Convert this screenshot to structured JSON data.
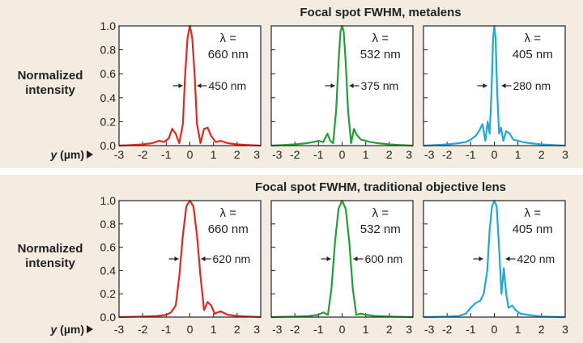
{
  "sections": [
    {
      "title": "Focal spot FWHM, metalens",
      "ylabel_line1": "Normalized",
      "ylabel_line2": "intensity",
      "xlabel": "y (µm)",
      "panels": [
        {
          "wavelength_line1": "λ =",
          "wavelength_line2": "660 nm",
          "fwhm_label": "450 nm",
          "color": "#e8251f"
        },
        {
          "wavelength_line1": "λ =",
          "wavelength_line2": "532 nm",
          "fwhm_label": "375 nm",
          "color": "#22a033"
        },
        {
          "wavelength_line1": "λ =",
          "wavelength_line2": "405 nm",
          "fwhm_label": "280 nm",
          "color": "#20a8d8"
        }
      ]
    },
    {
      "title": "Focal spot FWHM, traditional objective lens",
      "ylabel_line1": "Normalized",
      "ylabel_line2": "intensity",
      "xlabel": "y (µm)",
      "panels": [
        {
          "wavelength_line1": "λ =",
          "wavelength_line2": "660 nm",
          "fwhm_label": "620 nm",
          "color": "#e8251f"
        },
        {
          "wavelength_line1": "λ =",
          "wavelength_line2": "532 nm",
          "fwhm_label": "600 nm",
          "color": "#22a033"
        },
        {
          "wavelength_line1": "λ =",
          "wavelength_line2": "405 nm",
          "fwhm_label": "420 nm",
          "color": "#20a8d8"
        }
      ]
    }
  ],
  "chart_data": [
    {
      "type": "line",
      "title": "Focal spot FWHM, metalens",
      "series_label": "λ = 660 nm",
      "fwhm": "450 nm",
      "color": "#e8251f",
      "xlim": [
        -3,
        3
      ],
      "ylim": [
        0,
        1
      ],
      "xticks": [
        -3,
        -2,
        -1,
        0,
        1,
        2,
        3
      ],
      "yticks": [
        "0.0",
        "0.2",
        "0.4",
        "0.6",
        "0.8",
        "1.0"
      ],
      "x": [
        -3,
        -2.5,
        -2,
        -1.6,
        -1.3,
        -1.1,
        -0.9,
        -0.75,
        -0.6,
        -0.45,
        -0.3,
        -0.2,
        -0.1,
        0,
        0.1,
        0.2,
        0.3,
        0.45,
        0.6,
        0.75,
        0.9,
        1.1,
        1.3,
        1.6,
        2,
        2.5,
        3
      ],
      "y": [
        0,
        0.005,
        0.01,
        0.02,
        0.04,
        0.03,
        0.06,
        0.14,
        0.1,
        0.02,
        0.18,
        0.6,
        0.9,
        1.0,
        0.9,
        0.6,
        0.18,
        0.02,
        0.14,
        0.15,
        0.08,
        0.03,
        0.04,
        0.02,
        0.01,
        0.005,
        0
      ]
    },
    {
      "type": "line",
      "title": "Focal spot FWHM, metalens",
      "series_label": "λ = 532 nm",
      "fwhm": "375 nm",
      "color": "#22a033",
      "xlim": [
        -3,
        3
      ],
      "ylim": [
        0,
        1
      ],
      "xticks": [
        -3,
        -2,
        -1,
        0,
        1,
        2,
        3
      ],
      "yticks": [
        "0.0",
        "0.2",
        "0.4",
        "0.6",
        "0.8",
        "1.0"
      ],
      "x": [
        -3,
        -2.5,
        -2,
        -1.5,
        -1.2,
        -1,
        -0.8,
        -0.62,
        -0.5,
        -0.38,
        -0.25,
        -0.15,
        -0.07,
        0,
        0.07,
        0.15,
        0.25,
        0.38,
        0.5,
        0.62,
        0.8,
        1,
        1.2,
        1.5,
        2,
        2.5,
        3
      ],
      "y": [
        0,
        0.005,
        0.01,
        0.02,
        0.03,
        0.04,
        0.03,
        0.1,
        0.04,
        0.02,
        0.3,
        0.7,
        0.95,
        1.0,
        0.95,
        0.7,
        0.3,
        0.02,
        0.14,
        0.09,
        0.05,
        0.04,
        0.03,
        0.02,
        0.01,
        0.005,
        0
      ]
    },
    {
      "type": "line",
      "title": "Focal spot FWHM, metalens",
      "series_label": "λ = 405 nm",
      "fwhm": "280 nm",
      "color": "#20a8d8",
      "xlim": [
        -3,
        3
      ],
      "ylim": [
        0,
        1
      ],
      "xticks": [
        -3,
        -2,
        -1,
        0,
        1,
        2,
        3
      ],
      "yticks": [
        "0.0",
        "0.2",
        "0.4",
        "0.6",
        "0.8",
        "1.0"
      ],
      "x": [
        -3,
        -2.5,
        -2,
        -1.5,
        -1.2,
        -1,
        -0.8,
        -0.65,
        -0.5,
        -0.38,
        -0.28,
        -0.2,
        -0.12,
        -0.05,
        0,
        0.05,
        0.12,
        0.2,
        0.28,
        0.38,
        0.5,
        0.65,
        0.8,
        1,
        1.2,
        1.5,
        2,
        2.5,
        3
      ],
      "y": [
        0,
        0.005,
        0.01,
        0.02,
        0.03,
        0.05,
        0.08,
        0.12,
        0.18,
        0.04,
        0.2,
        0.1,
        0.45,
        0.9,
        1.0,
        0.9,
        0.45,
        0.1,
        0.15,
        0.04,
        0.12,
        0.1,
        0.05,
        0.04,
        0.03,
        0.02,
        0.01,
        0.005,
        0
      ]
    },
    {
      "type": "line",
      "title": "Focal spot FWHM, traditional objective lens",
      "series_label": "λ = 660 nm",
      "fwhm": "620 nm",
      "color": "#e8251f",
      "xlim": [
        -3,
        3
      ],
      "ylim": [
        0,
        1
      ],
      "xticks": [
        -3,
        -2,
        -1,
        0,
        1,
        2,
        3
      ],
      "yticks": [
        "0.0",
        "0.2",
        "0.4",
        "0.6",
        "0.8",
        "1.0"
      ],
      "x": [
        -3,
        -2,
        -1.4,
        -1.0,
        -0.8,
        -0.6,
        -0.45,
        -0.3,
        -0.15,
        0,
        0.15,
        0.3,
        0.45,
        0.6,
        0.75,
        0.9,
        1.05,
        1.3,
        1.6,
        2,
        2.5,
        3
      ],
      "y": [
        0,
        0.005,
        0.01,
        0.02,
        0.04,
        0.1,
        0.35,
        0.7,
        0.95,
        1.0,
        0.95,
        0.7,
        0.35,
        0.06,
        0.13,
        0.1,
        0.03,
        0.05,
        0.02,
        0.01,
        0.005,
        0
      ]
    },
    {
      "type": "line",
      "title": "Focal spot FWHM, traditional objective lens",
      "series_label": "λ = 532 nm",
      "fwhm": "600 nm",
      "color": "#22a033",
      "xlim": [
        -3,
        3
      ],
      "ylim": [
        0,
        1
      ],
      "xticks": [
        -3,
        -2,
        -1,
        0,
        1,
        2,
        3
      ],
      "yticks": [
        "0.0",
        "0.2",
        "0.4",
        "0.6",
        "0.8",
        "1.0"
      ],
      "x": [
        -3,
        -2,
        -1.4,
        -1.0,
        -0.8,
        -0.6,
        -0.45,
        -0.3,
        -0.15,
        0,
        0.15,
        0.3,
        0.45,
        0.6,
        0.8,
        1.0,
        1.4,
        2,
        3
      ],
      "y": [
        0,
        0.005,
        0.01,
        0.02,
        0.04,
        0.02,
        0.25,
        0.65,
        0.93,
        1.0,
        0.93,
        0.65,
        0.25,
        0.02,
        0.03,
        0.02,
        0.01,
        0.005,
        0
      ]
    },
    {
      "type": "line",
      "title": "Focal spot FWHM, traditional objective lens",
      "series_label": "λ = 405 nm",
      "fwhm": "420 nm",
      "color": "#20a8d8",
      "xlim": [
        -3,
        3
      ],
      "ylim": [
        0,
        1
      ],
      "xticks": [
        -3,
        -2,
        -1,
        0,
        1,
        2,
        3
      ],
      "yticks": [
        "0.0",
        "0.2",
        "0.4",
        "0.6",
        "0.8",
        "1.0"
      ],
      "x": [
        -3,
        -2,
        -1.5,
        -1.2,
        -1.0,
        -0.8,
        -0.6,
        -0.45,
        -0.3,
        -0.2,
        -0.1,
        0,
        0.1,
        0.2,
        0.3,
        0.4,
        0.5,
        0.6,
        0.75,
        0.9,
        1.1,
        1.4,
        2,
        3
      ],
      "y": [
        0,
        0.005,
        0.01,
        0.03,
        0.08,
        0.12,
        0.14,
        0.2,
        0.4,
        0.75,
        0.95,
        1.0,
        0.95,
        0.6,
        0.2,
        0.42,
        0.2,
        0.08,
        0.1,
        0.06,
        0.03,
        0.02,
        0.005,
        0
      ]
    }
  ]
}
